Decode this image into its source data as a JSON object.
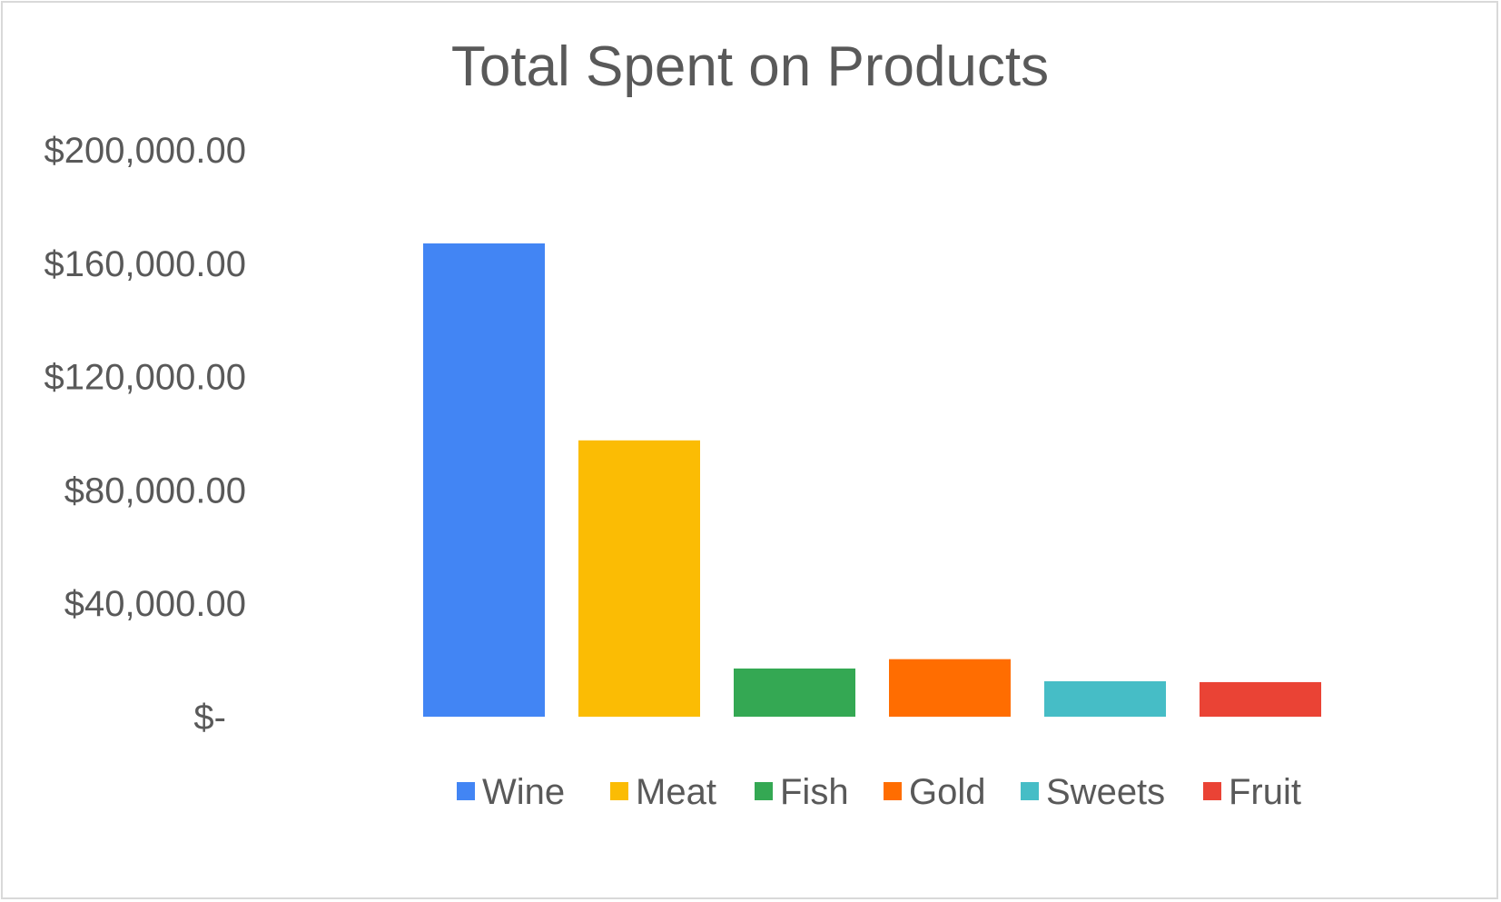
{
  "chart_data": {
    "type": "bar",
    "title": "Total Spent on Products",
    "xlabel": "",
    "ylabel": "",
    "ylim": [
      0,
      200000
    ],
    "yticks": [
      {
        "value": 0,
        "label": "$-"
      },
      {
        "value": 40000,
        "label": "$40,000.00"
      },
      {
        "value": 80000,
        "label": "$80,000.00"
      },
      {
        "value": 120000,
        "label": "$120,000.00"
      },
      {
        "value": 160000,
        "label": "$160,000.00"
      },
      {
        "value": 200000,
        "label": "$200,000.00"
      }
    ],
    "grid": false,
    "legend_position": "bottom",
    "series": [
      {
        "name": "Wine",
        "values": [
          167000
        ],
        "color": "#4285F4"
      },
      {
        "name": "Meat",
        "values": [
          97500
        ],
        "color": "#FBBC04"
      },
      {
        "name": "Fish",
        "values": [
          17000
        ],
        "color": "#34A853"
      },
      {
        "name": "Gold",
        "values": [
          20300
        ],
        "color": "#FF6D01"
      },
      {
        "name": "Sweets",
        "values": [
          12500
        ],
        "color": "#46BDC6"
      },
      {
        "name": "Fruit",
        "values": [
          12200
        ],
        "color": "#EA4335"
      }
    ]
  }
}
